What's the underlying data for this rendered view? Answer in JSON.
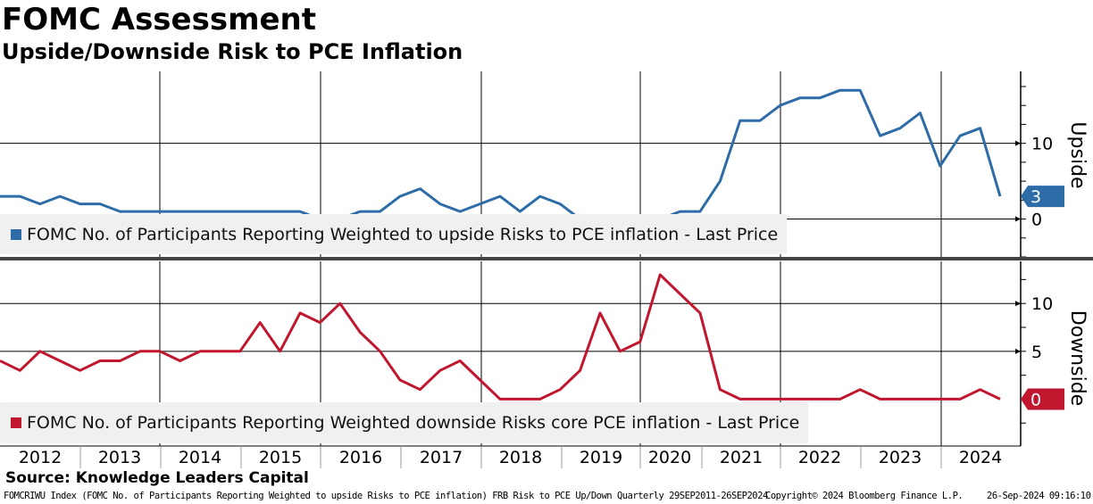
{
  "title": "FOMC Assessment",
  "subtitle": "Upside/Downside Risk to PCE Inflation",
  "source": "Source: Knowledge Leaders Capital",
  "footer": {
    "left": "FOMCRIWU Index (FOMC No. of Participants Reporting Weighted to upside Risks to PCE inflation) FRB Risk to PCE Up/Down  Quarterly 29SEP2011-26SEP2024",
    "copyright": "Copyright© 2024 Bloomberg Finance L.P.",
    "timestamp": "26-Sep-2024 09:16:10"
  },
  "chart_data": [
    {
      "type": "line",
      "panel_label": "Upside",
      "legend": "FOMC No. of Participants Reporting Weighted to upside Risks to PCE inflation - Last Price",
      "color": "#2e6ca8",
      "last_value": "3",
      "yticks": [
        "0",
        "10"
      ],
      "ylim": [
        -5,
        19.5
      ],
      "x_start": "Q4 2011",
      "x_end": "Q3 2024",
      "frequency": "quarterly",
      "values": [
        3,
        3,
        2,
        3,
        2,
        2,
        1,
        1,
        1,
        1,
        1,
        1,
        1,
        1,
        1,
        1,
        0,
        0,
        1,
        1,
        3,
        4,
        2,
        1,
        2,
        3,
        1,
        3,
        2,
        0,
        0,
        0,
        0,
        0,
        1,
        1,
        5,
        13,
        13,
        15,
        16,
        16,
        17,
        17,
        11,
        12,
        14,
        7,
        11,
        12,
        3
      ]
    },
    {
      "type": "line",
      "panel_label": "Downside",
      "legend": "FOMC No. of Participants Reporting Weighted downside Risks core PCE inflation - Last Price",
      "color": "#c0172f",
      "last_value": "0",
      "yticks": [
        "5",
        "10"
      ],
      "ylim": [
        -4.9,
        14.4
      ],
      "x_start": "Q4 2011",
      "x_end": "Q3 2024",
      "frequency": "quarterly",
      "values": [
        4,
        3,
        5,
        4,
        3,
        4,
        4,
        5,
        5,
        4,
        5,
        5,
        5,
        8,
        5,
        9,
        8,
        10,
        7,
        5,
        2,
        1,
        3,
        4,
        2,
        0,
        0,
        0,
        1,
        3,
        9,
        5,
        6,
        13,
        11,
        9,
        1,
        0,
        0,
        0,
        0,
        0,
        0,
        1,
        0,
        0,
        0,
        0,
        0,
        1,
        0
      ]
    }
  ],
  "x_tick_labels": [
    "2012",
    "2013",
    "2014",
    "2015",
    "2016",
    "2017",
    "2018",
    "2019",
    "2020",
    "2021",
    "2022",
    "2023",
    "2024"
  ]
}
